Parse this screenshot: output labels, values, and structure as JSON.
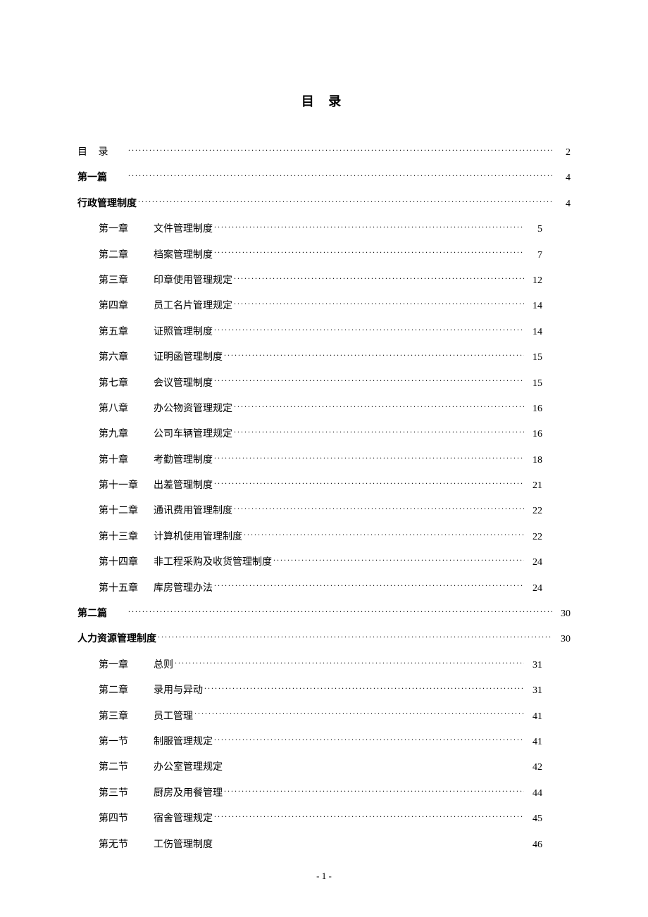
{
  "title": "目 录",
  "footer": "- 1 -",
  "entries": [
    {
      "label": "目  录",
      "title": "",
      "page": "2",
      "indent": 0,
      "bold": false,
      "dots": true,
      "labelWide": true,
      "rightWide": false
    },
    {
      "label": "第一篇",
      "title": "",
      "page": "4",
      "indent": 0,
      "bold": true,
      "dots": true,
      "rightWide": false
    },
    {
      "label": "行政管理制度",
      "title": "",
      "page": "4",
      "indent": 0,
      "bold": true,
      "dots": true,
      "rightWide": false
    },
    {
      "label": "第一章",
      "title": "文件管理制度",
      "page": "5",
      "indent": 1,
      "bold": false,
      "dots": true,
      "rightWide": true
    },
    {
      "label": "第二章",
      "title": "档案管理制度",
      "page": "7",
      "indent": 1,
      "bold": false,
      "dots": true,
      "rightWide": true
    },
    {
      "label": "第三章",
      "title": "印章使用管理规定",
      "page": "12",
      "indent": 1,
      "bold": false,
      "dots": true,
      "rightWide": true
    },
    {
      "label": "第四章",
      "title": "员工名片管理规定",
      "page": "14",
      "indent": 1,
      "bold": false,
      "dots": true,
      "rightWide": true
    },
    {
      "label": "第五章",
      "title": "证照管理制度",
      "page": "14",
      "indent": 1,
      "bold": false,
      "dots": true,
      "rightWide": true
    },
    {
      "label": "第六章",
      "title": "证明函管理制度",
      "page": "15",
      "indent": 1,
      "bold": false,
      "dots": true,
      "rightWide": true
    },
    {
      "label": "第七章",
      "title": "会议管理制度",
      "page": "15",
      "indent": 1,
      "bold": false,
      "dots": true,
      "rightWide": true
    },
    {
      "label": "第八章",
      "title": "办公物资管理规定",
      "page": "16",
      "indent": 1,
      "bold": false,
      "dots": true,
      "rightWide": true
    },
    {
      "label": "第九章",
      "title": "公司车辆管理规定",
      "page": "16",
      "indent": 1,
      "bold": false,
      "dots": true,
      "rightWide": true
    },
    {
      "label": "第十章",
      "title": "考勤管理制度",
      "page": "18",
      "indent": 1,
      "bold": false,
      "dots": true,
      "rightWide": true
    },
    {
      "label": "第十一章",
      "title": "出差管理制度",
      "page": "21",
      "indent": 1,
      "bold": false,
      "dots": true,
      "rightWide": true
    },
    {
      "label": "第十二章",
      "title": "通讯费用管理制度",
      "page": "22",
      "indent": 1,
      "bold": false,
      "dots": true,
      "rightWide": true
    },
    {
      "label": "第十三章",
      "title": "计算机使用管理制度",
      "page": "22",
      "indent": 1,
      "bold": false,
      "dots": true,
      "rightWide": true
    },
    {
      "label": "第十四章",
      "title": "非工程采购及收货管理制度",
      "page": "24",
      "indent": 1,
      "bold": false,
      "dots": true,
      "rightWide": true
    },
    {
      "label": "第十五章",
      "title": "库房管理办法",
      "page": "24",
      "indent": 1,
      "bold": false,
      "dots": true,
      "rightWide": true
    },
    {
      "label": "第二篇",
      "title": "",
      "page": "30",
      "indent": 0,
      "bold": true,
      "dots": true,
      "rightWide": false
    },
    {
      "label": "人力资源管理制度",
      "title": "",
      "page": "30",
      "indent": 0,
      "bold": true,
      "dots": true,
      "rightWide": false
    },
    {
      "label": "第一章",
      "title": "总则",
      "page": "31",
      "indent": 1,
      "bold": false,
      "dots": true,
      "rightWide": true
    },
    {
      "label": "第二章",
      "title": "录用与异动",
      "page": "31",
      "indent": 1,
      "bold": false,
      "dots": true,
      "rightWide": true
    },
    {
      "label": "第三章",
      "title": "员工管理",
      "page": "41",
      "indent": 1,
      "bold": false,
      "dots": true,
      "rightWide": true
    },
    {
      "label": "第一节",
      "title": "制服管理规定",
      "page": "41",
      "indent": 1,
      "bold": false,
      "dots": true,
      "rightWide": true
    },
    {
      "label": "第二节",
      "title": "办公室管理规定",
      "page": "42",
      "indent": 1,
      "bold": false,
      "dots": false,
      "rightWide": true
    },
    {
      "label": "第三节",
      "title": "厨房及用餐管理",
      "page": "44",
      "indent": 1,
      "bold": false,
      "dots": true,
      "rightWide": true
    },
    {
      "label": "第四节",
      "title": "宿舍管理规定",
      "page": "45",
      "indent": 1,
      "bold": false,
      "dots": true,
      "rightWide": true
    },
    {
      "label": "第无节",
      "title": "工伤管理制度",
      "page": "46",
      "indent": 1,
      "bold": false,
      "dots": false,
      "rightWide": true
    }
  ]
}
